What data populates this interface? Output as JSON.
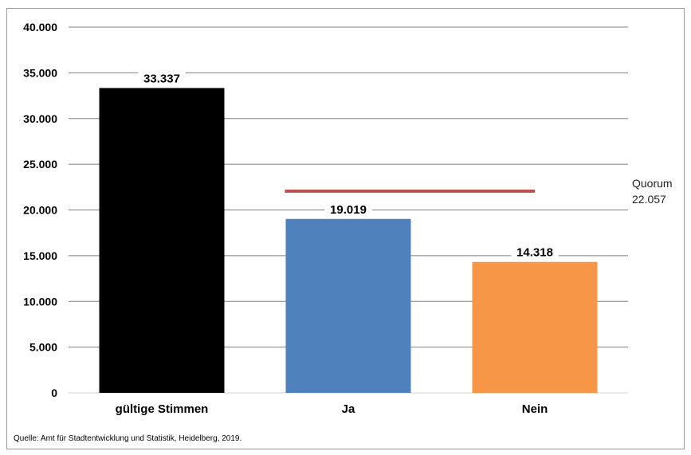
{
  "chart_data": {
    "type": "bar",
    "categories": [
      "gültige Stimmen",
      "Ja",
      "Nein"
    ],
    "values": [
      33337,
      19019,
      14318
    ],
    "value_labels": [
      "33.337",
      "19.019",
      "14.318"
    ],
    "colors": [
      "#000000",
      "#4f81bd",
      "#f79646"
    ],
    "ylim": [
      0,
      40000
    ],
    "yticks": [
      0,
      5000,
      10000,
      15000,
      20000,
      25000,
      30000,
      35000,
      40000
    ],
    "ytick_labels": [
      "0",
      "5.000",
      "10.000",
      "15.000",
      "20.000",
      "25.000",
      "30.000",
      "35.000",
      "40.000"
    ],
    "grid": true,
    "reference_line": {
      "value": 22057,
      "color": "#c0504d",
      "label_line1": "Quorum",
      "label_line2": "22.057",
      "from_category": "Ja",
      "to_category": "Nein"
    }
  },
  "source": "Quelle: Amt für Stadtentwicklung und Statistik, Heidelberg, 2019."
}
